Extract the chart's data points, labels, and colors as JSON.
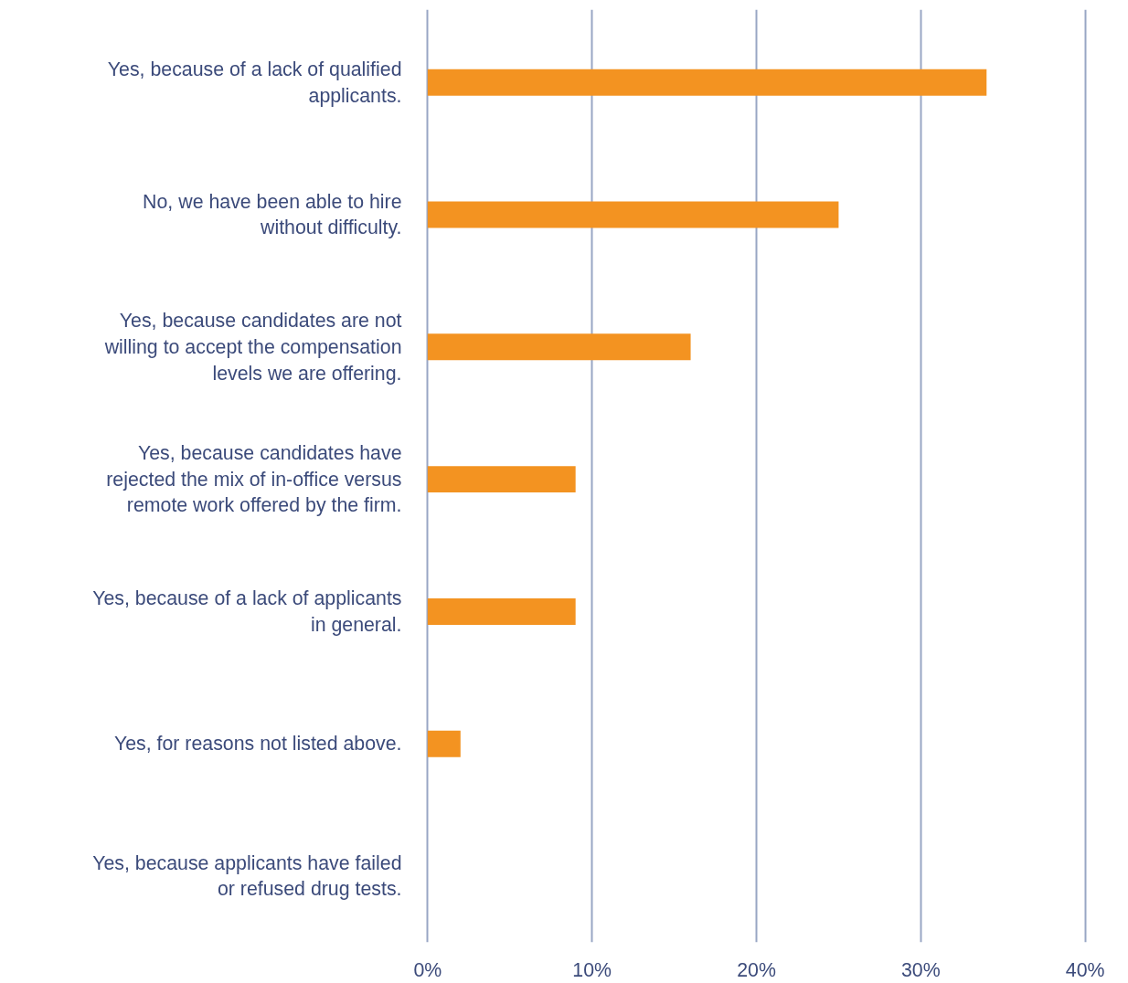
{
  "chart_data": {
    "type": "bar",
    "orientation": "horizontal",
    "categories": [
      "Yes, because of a lack of qualified applicants.",
      "No, we have been able to hire without difficulty.",
      "Yes, because candidates are not willing to accept the compensation levels we are offering.",
      "Yes, because candidates have rejected the mix of in-office versus remote work offered by the firm.",
      "Yes, because of a lack of applicants in general.",
      "Yes, for reasons not listed above.",
      "Yes, because applicants have failed or refused drug tests."
    ],
    "values": [
      34,
      25,
      16,
      9,
      9,
      2,
      0
    ],
    "color": "#f39321",
    "xlim": [
      0,
      40
    ],
    "xticks": [
      {
        "value": 0,
        "label": "0%"
      },
      {
        "value": 10,
        "label": "10%"
      },
      {
        "value": 20,
        "label": "20%"
      },
      {
        "value": 30,
        "label": "30%"
      },
      {
        "value": 40,
        "label": "40%"
      }
    ],
    "grid": "x"
  }
}
